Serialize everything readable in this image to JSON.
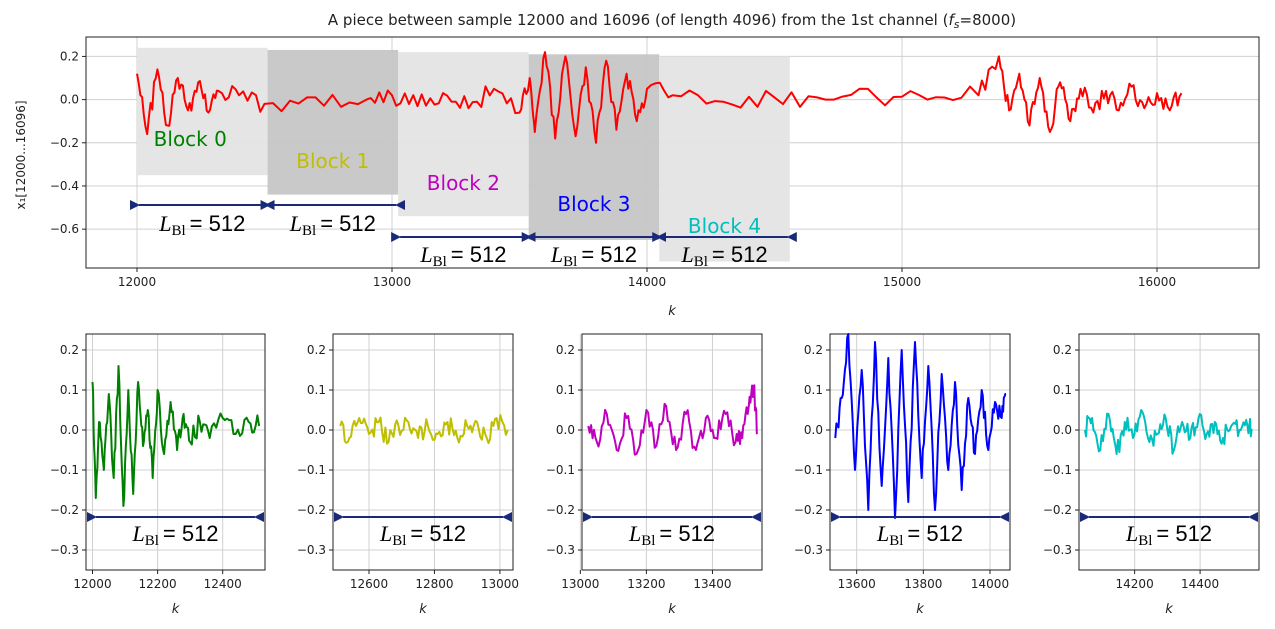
{
  "chart_data": [
    {
      "type": "line",
      "title": "A piece between sample 12000 and 16096 (of length 4096) from the 1st channel (",
      "title_fs": "f",
      "title_fs_sub": "s",
      "title_tail": "=8000)",
      "xlabel": "k",
      "ylabel": "x₁[12000...16096]",
      "xlim": [
        11800,
        16400
      ],
      "ylim": [
        -0.78,
        0.29
      ],
      "xticks": [
        12000,
        13000,
        14000,
        15000,
        16000
      ],
      "yticks": [
        0.2,
        0.0,
        -0.2,
        -0.4,
        -0.6
      ],
      "ytick_labels": [
        "0.2",
        "0.0",
        "−0.2",
        "−0.4",
        "−0.6"
      ],
      "grid": true,
      "series": [
        {
          "color": "#ff0000",
          "x": [
            12000,
            12040,
            12080,
            12120,
            12160,
            12200,
            12240,
            12280,
            12320,
            12400,
            12500,
            12700,
            12900,
            13000,
            13100,
            13200,
            13300,
            13400,
            13500,
            13540,
            13560,
            13600,
            13640,
            13680,
            13720,
            13760,
            13800,
            13840,
            13880,
            13920,
            13960,
            14000,
            14100,
            14300,
            14500,
            14700,
            14900,
            15100,
            15300,
            15380,
            15420,
            15460,
            15500,
            15540,
            15580,
            15620,
            15660,
            15700,
            15750,
            15800,
            15850,
            15900,
            15950,
            16000,
            16050,
            16096
          ],
          "values": [
            0.12,
            -0.16,
            0.14,
            -0.12,
            0.1,
            -0.05,
            0.08,
            -0.06,
            0.04,
            0.02,
            -0.02,
            0.01,
            0.0,
            0.02,
            -0.03,
            0.03,
            -0.04,
            0.05,
            -0.06,
            0.1,
            -0.15,
            0.22,
            -0.18,
            0.2,
            -0.17,
            0.15,
            -0.2,
            0.18,
            -0.14,
            0.12,
            -0.1,
            0.05,
            0.02,
            -0.01,
            0.01,
            0.0,
            0.01,
            0.0,
            0.02,
            0.2,
            -0.05,
            0.12,
            -0.12,
            0.1,
            -0.15,
            0.08,
            -0.1,
            0.05,
            -0.06,
            0.04,
            -0.05,
            0.06,
            -0.04,
            0.03,
            -0.05,
            0.03
          ]
        }
      ],
      "blocks": [
        {
          "name": "Block 0",
          "color": "#008000",
          "x0": 12000,
          "x1": 12512,
          "shade_top": 0.24,
          "shade_bottom": -0.35
        },
        {
          "name": "Block 1",
          "color": "#bfbf00",
          "x0": 12512,
          "x1": 13024,
          "shade_top": 0.23,
          "shade_bottom": -0.44
        },
        {
          "name": "Block 2",
          "color": "#bf00bf",
          "x0": 13024,
          "x1": 13536,
          "shade_top": 0.22,
          "shade_bottom": -0.54
        },
        {
          "name": "Block 3",
          "color": "#0000ff",
          "x0": 13536,
          "x1": 14048,
          "shade_top": 0.21,
          "shade_bottom": -0.65
        },
        {
          "name": "Block 4",
          "color": "#00bfbf",
          "x0": 14048,
          "x1": 14560,
          "shade_top": 0.2,
          "shade_bottom": -0.75
        }
      ],
      "annotation_prefix": "L",
      "annotation_sub": "Bl",
      "annotation_value": "= 512"
    },
    {
      "type": "line",
      "xlabel": "k",
      "xlim": [
        11980,
        12530
      ],
      "ylim": [
        -0.35,
        0.24
      ],
      "xticks": [
        12000,
        12200,
        12400
      ],
      "yticks": [
        0.2,
        0.1,
        0.0,
        -0.1,
        -0.2,
        -0.3
      ],
      "grid": true,
      "series": [
        {
          "color": "#008000",
          "x": [
            12000,
            12010,
            12020,
            12035,
            12050,
            12065,
            12080,
            12095,
            12110,
            12125,
            12140,
            12155,
            12170,
            12185,
            12200,
            12220,
            12240,
            12260,
            12280,
            12300,
            12330,
            12360,
            12400,
            12440,
            12480,
            12512
          ],
          "values": [
            0.12,
            -0.17,
            0.02,
            -0.1,
            0.09,
            -0.12,
            0.16,
            -0.19,
            0.1,
            -0.16,
            0.12,
            -0.04,
            0.05,
            -0.12,
            0.1,
            -0.06,
            0.07,
            -0.05,
            0.04,
            -0.03,
            0.02,
            -0.02,
            0.03,
            -0.01,
            0.02,
            0.01
          ]
        }
      ]
    },
    {
      "type": "line",
      "xlabel": "k",
      "xlim": [
        12490,
        13040
      ],
      "ylim": [
        -0.35,
        0.24
      ],
      "xticks": [
        12600,
        12800,
        13000
      ],
      "yticks": [
        0.2,
        0.1,
        0.0,
        -0.1,
        -0.2,
        -0.3
      ],
      "grid": true,
      "series": [
        {
          "color": "#bfbf00",
          "x": [
            12512,
            12540,
            12570,
            12600,
            12630,
            12660,
            12690,
            12720,
            12750,
            12780,
            12810,
            12840,
            12870,
            12900,
            12930,
            12960,
            12990,
            13024
          ],
          "values": [
            0.01,
            -0.02,
            0.03,
            -0.01,
            0.02,
            -0.03,
            0.01,
            0.02,
            -0.02,
            0.01,
            -0.01,
            0.02,
            -0.02,
            0.01,
            0.02,
            -0.02,
            0.03,
            0.0
          ]
        }
      ]
    },
    {
      "type": "line",
      "xlabel": "k",
      "xlim": [
        13005,
        13550
      ],
      "ylim": [
        -0.35,
        0.24
      ],
      "xticks": [
        13000,
        13200,
        13400
      ],
      "yticks": [
        0.2,
        0.1,
        0.0,
        -0.1,
        -0.2,
        -0.3
      ],
      "grid": true,
      "series": [
        {
          "color": "#bf00bf",
          "x": [
            13024,
            13050,
            13080,
            13110,
            13140,
            13170,
            13200,
            13230,
            13260,
            13290,
            13320,
            13350,
            13380,
            13410,
            13440,
            13470,
            13490,
            13510,
            13525,
            13536
          ],
          "values": [
            0.01,
            -0.03,
            0.04,
            -0.05,
            0.03,
            -0.06,
            0.05,
            -0.04,
            0.06,
            -0.05,
            0.04,
            -0.05,
            0.03,
            -0.02,
            0.04,
            -0.03,
            -0.02,
            0.06,
            0.11,
            -0.01
          ]
        }
      ]
    },
    {
      "type": "line",
      "xlabel": "k",
      "xlim": [
        13520,
        14060
      ],
      "ylim": [
        -0.35,
        0.24
      ],
      "xticks": [
        13600,
        13800,
        14000
      ],
      "yticks": [
        0.2,
        0.1,
        0.0,
        -0.1,
        -0.2,
        -0.3
      ],
      "grid": true,
      "series": [
        {
          "color": "#0000ff",
          "x": [
            13536,
            13555,
            13575,
            13595,
            13615,
            13635,
            13655,
            13675,
            13695,
            13715,
            13735,
            13755,
            13775,
            13795,
            13815,
            13835,
            13855,
            13875,
            13895,
            13915,
            13935,
            13955,
            13975,
            13995,
            14015,
            14035,
            14048
          ],
          "values": [
            -0.02,
            0.08,
            0.24,
            -0.1,
            0.15,
            -0.2,
            0.22,
            -0.14,
            0.18,
            -0.22,
            0.2,
            -0.18,
            0.22,
            -0.12,
            0.16,
            -0.2,
            0.14,
            -0.1,
            0.12,
            -0.15,
            0.08,
            -0.06,
            0.1,
            -0.05,
            0.07,
            0.03,
            0.09
          ]
        }
      ]
    },
    {
      "type": "line",
      "xlabel": "k",
      "xlim": [
        14030,
        14580
      ],
      "ylim": [
        -0.35,
        0.24
      ],
      "xticks": [
        14200,
        14400
      ],
      "yticks": [
        0.2,
        0.1,
        0.0,
        -0.1,
        -0.2,
        -0.3
      ],
      "grid": true,
      "series": [
        {
          "color": "#00bfbf",
          "x": [
            14048,
            14070,
            14095,
            14120,
            14145,
            14170,
            14195,
            14220,
            14245,
            14270,
            14295,
            14320,
            14345,
            14370,
            14395,
            14420,
            14445,
            14470,
            14495,
            14520,
            14545,
            14560
          ],
          "values": [
            0.0,
            0.03,
            -0.05,
            0.04,
            -0.06,
            0.02,
            -0.02,
            0.05,
            -0.03,
            -0.01,
            0.03,
            -0.05,
            0.02,
            -0.02,
            0.03,
            -0.01,
            0.02,
            -0.02,
            0.01,
            0.0,
            0.01,
            0.0
          ]
        }
      ]
    }
  ]
}
